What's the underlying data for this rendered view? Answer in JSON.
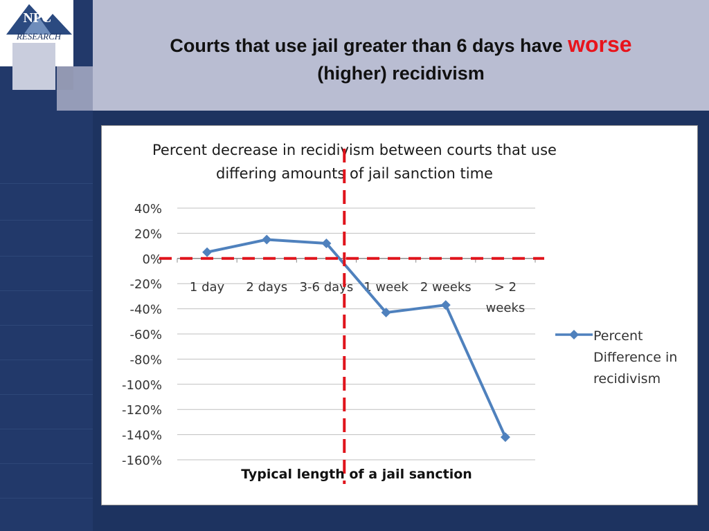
{
  "slide": {
    "title_main": "Courts that use jail greater than 6 days have ",
    "title_emphasis": "worse",
    "title_tail": "(higher) recidivism",
    "logo_text_top": "NPC",
    "logo_text_bottom": "RESEARCH"
  },
  "colors": {
    "background": "#1d3360",
    "header": "#b9bdd2",
    "emphasis": "#e8141c",
    "series": "#4f81bd",
    "dashed_reference": "#e0141c"
  },
  "chart_data": {
    "type": "line",
    "title": "Percent decrease in recidivism between courts that use differing amounts of jail sanction time",
    "title_lines": [
      "Percent decrease in recidivism between courts that use",
      "differing amounts of jail sanction time"
    ],
    "xlabel": "Typical length of a jail sanction",
    "ylabel": "",
    "categories": [
      "1 day",
      "2 days",
      "3-6 days",
      "1 week",
      "2 weeks",
      "> 2 weeks"
    ],
    "category_lines": [
      [
        "1 day"
      ],
      [
        "2 days"
      ],
      [
        "3-6 days"
      ],
      [
        "1 week"
      ],
      [
        "2 weeks"
      ],
      [
        "> 2",
        "weeks"
      ]
    ],
    "series": [
      {
        "name": "Percent Difference in recidivism",
        "values": [
          5,
          15,
          12,
          -43,
          -37,
          -142
        ]
      }
    ],
    "ylim": [
      -160,
      40
    ],
    "yticks": [
      40,
      20,
      0,
      -20,
      -40,
      -60,
      -80,
      -100,
      -120,
      -140,
      -160
    ],
    "ytick_labels": [
      "40%",
      "20%",
      "0%",
      "-20%",
      "-40%",
      "-60%",
      "-80%",
      "-100%",
      "-120%",
      "-140%",
      "-160%"
    ],
    "grid": true,
    "legend": "right",
    "legend_lines": [
      "Percent",
      "Difference in",
      "recidivism"
    ],
    "reference_lines": [
      {
        "orientation": "horizontal",
        "at_y": 0,
        "style": "dashed"
      },
      {
        "orientation": "vertical",
        "between_categories": [
          "3-6 days",
          "1 week"
        ],
        "style": "dashed"
      }
    ]
  }
}
